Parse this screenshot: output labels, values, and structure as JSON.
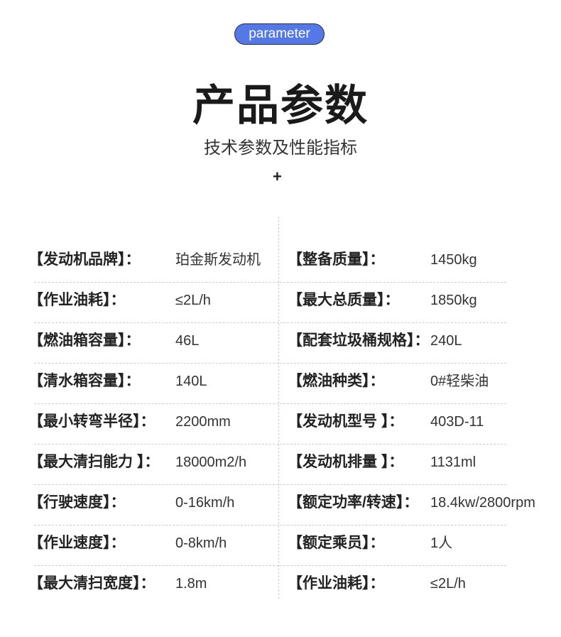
{
  "header": {
    "badge": "parameter",
    "title": "产品参数",
    "subtitle": "技术参数及性能指标",
    "plus": "+"
  },
  "rows": [
    {
      "l_label": "【发动机品牌】：",
      "l_value": "珀金斯发动机",
      "r_label": "【整备质量】：",
      "r_value": "1450kg"
    },
    {
      "l_label": "【作业油耗】：",
      "l_value": "≤2L/h",
      "r_label": "【最大总质量】：",
      "r_value": " 1850kg"
    },
    {
      "l_label": "【燃油箱容量】：",
      "l_value": "46L",
      "r_label": "【配套垃圾桶规格】：",
      "r_value": "240L"
    },
    {
      "l_label": "【清水箱容量】：",
      "l_value": "140L",
      "r_label": "【燃油种类】：",
      "r_value": "0#轻柴油"
    },
    {
      "l_label": "【最小转弯半径】：",
      "l_value": "2200mm",
      "r_label": "【发动机型号 】：",
      "r_value": "403D-11"
    },
    {
      "l_label": "【最大清扫能力 】：",
      "l_value": "18000m2/h",
      "r_label": "【发动机排量 】：",
      "r_value": "1131ml"
    },
    {
      "l_label": "【行驶速度】：",
      "l_value": "0-16km/h",
      "r_label": "【额定功率/转速】：",
      "r_value": "18.4kw/2800rpm"
    },
    {
      "l_label": "【作业速度】：",
      "l_value": " 0-8km/h",
      "r_label": "【额定乘员】：",
      "r_value": "1人"
    },
    {
      "l_label": "【最大清扫宽度】：",
      "l_value": "1.8m",
      "r_label": "【作业油耗】：",
      "r_value": "≤2L/h"
    }
  ]
}
